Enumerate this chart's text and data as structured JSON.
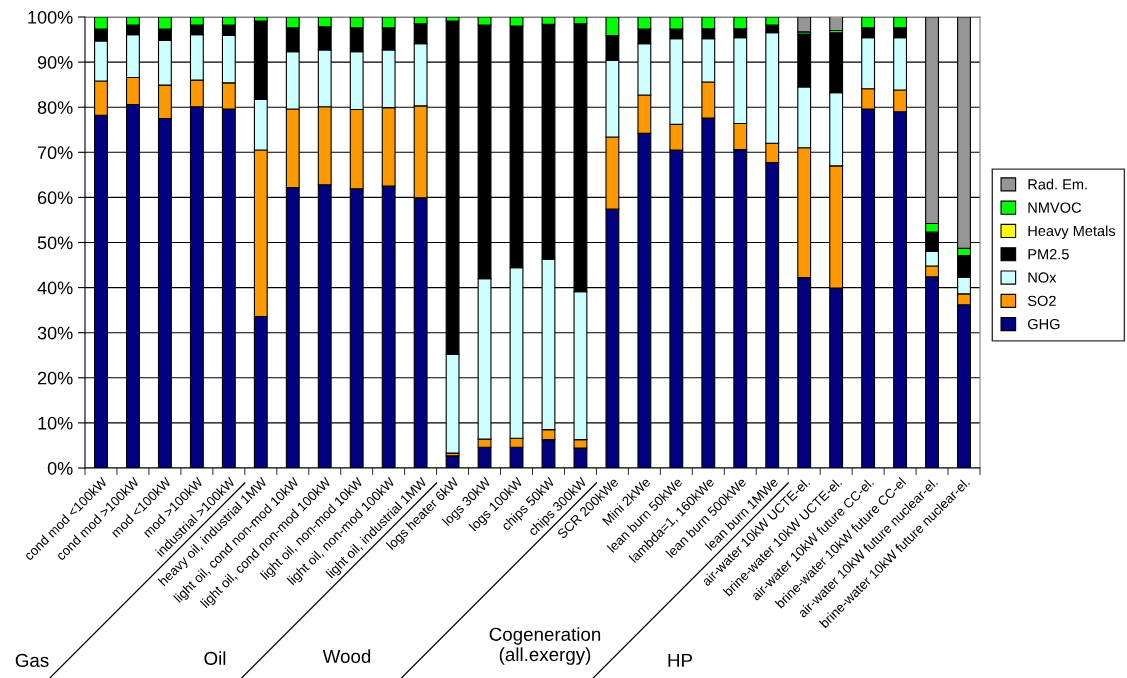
{
  "chart_data": {
    "type": "bar",
    "stacked": true,
    "categories": [
      "cond mod <100kW",
      "cond mod >100kW",
      "mod <100kW",
      "mod >100kW",
      "industrial >100kW",
      "heavy oil, industrial 1MW",
      "light oil, cond non-mod 10kW",
      "light oil, cond non-mod 100kW",
      "light oil, non-mod 10kW",
      "light oil, non-mod 100kW",
      "light oil, industrial 1MW",
      "logs heater 6kW",
      "logs 30kW",
      "logs 100kW",
      "chips 50kW",
      "chips 300kW",
      "SCR 200kWe",
      "Mini 2kWe",
      "lean burn 50kWe",
      "lambda=1, 160kWe",
      "lean burn 500kWe",
      "lean burn 1MWe",
      "air-water 10kW UCTE-el.",
      "brine-water 10kW UCTE-el.",
      "air-water 10kW future CC-el.",
      "brine-water 10kW future CC-el",
      "air-water 10kW future nuclear-el.",
      "brine-water 10kW future nuclear-el."
    ],
    "series": [
      {
        "name": "GHG",
        "color": "#000080",
        "values": [
          78.2,
          80.6,
          77.5,
          80.1,
          79.6,
          33.6,
          62.2,
          62.8,
          61.9,
          62.5,
          59.9,
          2.7,
          4.6,
          4.6,
          6.3,
          4.4,
          57.4,
          74.2,
          70.5,
          77.6,
          70.6,
          67.7,
          42.2,
          39.9,
          79.6,
          79.0,
          42.4,
          36.2
        ]
      },
      {
        "name": "SO2",
        "color": "#ff9900",
        "values": [
          7.6,
          6.0,
          7.4,
          5.9,
          5.8,
          36.9,
          17.4,
          17.3,
          17.6,
          17.4,
          20.4,
          0.6,
          1.8,
          2.0,
          2.2,
          1.9,
          16.0,
          8.5,
          5.7,
          8.0,
          5.8,
          4.3,
          28.8,
          27.1,
          4.5,
          4.8,
          2.4,
          2.4
        ]
      },
      {
        "name": "NOx",
        "color": "#ccffff",
        "values": [
          8.9,
          9.5,
          9.9,
          10.1,
          10.5,
          11.2,
          12.7,
          12.6,
          12.8,
          12.8,
          13.8,
          21.9,
          35.6,
          37.8,
          37.8,
          32.8,
          17.0,
          11.4,
          19.0,
          9.6,
          19.0,
          24.5,
          13.5,
          16.2,
          11.3,
          11.6,
          3.2,
          3.7
        ]
      },
      {
        "name": "PM2.5",
        "color": "#000000",
        "values": [
          2.6,
          2.1,
          2.5,
          2.1,
          2.3,
          17.4,
          5.3,
          5.1,
          5.3,
          4.9,
          4.4,
          73.9,
          56.2,
          53.6,
          52.1,
          59.4,
          5.5,
          3.2,
          2.1,
          2.2,
          2.0,
          1.7,
          11.7,
          13.3,
          2.2,
          2.2,
          4.3,
          4.8
        ]
      },
      {
        "name": "Heavy Metals",
        "color": "#ffff00",
        "values": [
          0,
          0,
          0,
          0,
          0,
          0,
          0,
          0,
          0,
          0,
          0,
          0,
          0,
          0,
          0,
          0,
          0,
          0,
          0,
          0,
          0,
          0,
          0,
          0,
          0,
          0,
          0,
          0
        ]
      },
      {
        "name": "NMVOC",
        "color": "#00ff00",
        "values": [
          2.7,
          1.8,
          2.7,
          1.8,
          1.8,
          0.9,
          2.4,
          2.2,
          2.4,
          2.4,
          1.5,
          0.9,
          1.8,
          2.0,
          1.6,
          1.5,
          4.1,
          2.7,
          2.7,
          2.6,
          2.6,
          1.8,
          0.5,
          0.5,
          2.4,
          2.4,
          1.9,
          1.6
        ]
      },
      {
        "name": "Rad. Em.",
        "color": "#969696",
        "values": [
          0,
          0,
          0,
          0,
          0,
          0,
          0,
          0,
          0,
          0,
          0,
          0,
          0,
          0,
          0,
          0,
          0,
          0,
          0,
          0,
          0,
          0,
          3.3,
          3.1,
          0,
          0,
          45.8,
          51.3
        ]
      }
    ],
    "ylim": [
      0,
      100
    ],
    "yticks": [
      {
        "value": 0,
        "label": "0%"
      },
      {
        "value": 10,
        "label": "10%"
      },
      {
        "value": 20,
        "label": "20%"
      },
      {
        "value": 30,
        "label": "30%"
      },
      {
        "value": 40,
        "label": "40%"
      },
      {
        "value": 50,
        "label": "50%"
      },
      {
        "value": 60,
        "label": "60%"
      },
      {
        "value": 70,
        "label": "70%"
      },
      {
        "value": 80,
        "label": "80%"
      },
      {
        "value": 90,
        "label": "90%"
      },
      {
        "value": 100,
        "label": "100%"
      }
    ],
    "grid": "y",
    "legend": "right",
    "annotations": [
      "Gas",
      "Oil",
      "Wood",
      "Cogeneration\n(all.exergy)",
      "HP"
    ]
  }
}
